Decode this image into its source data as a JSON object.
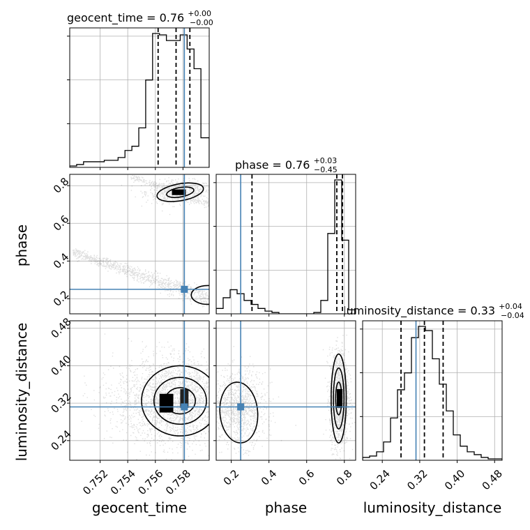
{
  "chart_data": {
    "type": "corner",
    "parameters": [
      "geocent_time",
      "phase",
      "luminosity_distance"
    ],
    "axis_labels": {
      "geocent_time": "geocent_time",
      "phase": "phase",
      "luminosity_distance": "luminosity_distance"
    },
    "titles": {
      "geocent_time": {
        "name": "geocent_time",
        "median": "0.76",
        "plus": "+0.00",
        "minus": "−0.00"
      },
      "phase": {
        "name": "phase",
        "median": "0.76",
        "plus": "+0.03",
        "minus": "−0.45"
      },
      "luminosity_distance": {
        "name": "luminosity_distance",
        "median": "0.33",
        "plus": "+0.04",
        "minus": "−0.04"
      }
    },
    "ranges": {
      "geocent_time": [
        0.7498,
        0.7599
      ],
      "phase": [
        0.12,
        0.86
      ],
      "luminosity_distance": [
        0.198,
        0.496
      ]
    },
    "ticks": {
      "geocent_time": [
        0.752,
        0.754,
        0.756,
        0.758
      ],
      "phase": [
        0.2,
        0.4,
        0.6,
        0.8
      ],
      "luminosity_distance": [
        0.24,
        0.32,
        0.4,
        0.48
      ]
    },
    "tick_labels": {
      "geocent_time": [
        "0.752",
        "0.754",
        "0.756",
        "0.758"
      ],
      "phase": [
        "0.2",
        "0.4",
        "0.6",
        "0.8"
      ],
      "luminosity_distance": [
        "0.24",
        "0.32",
        "0.40",
        "0.48"
      ]
    },
    "truths": {
      "geocent_time": 0.7581,
      "phase": 0.25,
      "luminosity_distance": 0.312
    },
    "quantiles": {
      "geocent_time": [
        0.7562,
        0.7575,
        0.7585
      ],
      "phase": [
        0.31,
        0.76,
        0.79
      ],
      "luminosity_distance": [
        0.28,
        0.33,
        0.37
      ]
    },
    "histograms": {
      "geocent_time": {
        "edges": [
          0.7498,
          0.7503,
          0.7508,
          0.7513,
          0.7518,
          0.7523,
          0.7528,
          0.7533,
          0.7538,
          0.7543,
          0.7548,
          0.7553,
          0.7558,
          0.7563,
          0.7568,
          0.7573,
          0.7578,
          0.7583,
          0.7588,
          0.7593,
          0.7599
        ],
        "counts": [
          1,
          2,
          4,
          4,
          4,
          5,
          5,
          7,
          12,
          15,
          28,
          62,
          95,
          94,
          90,
          90,
          94,
          84,
          70,
          21
        ]
      },
      "phase": {
        "edges": [
          0.12,
          0.157,
          0.194,
          0.231,
          0.268,
          0.305,
          0.342,
          0.379,
          0.416,
          0.453,
          0.49,
          0.527,
          0.564,
          0.601,
          0.638,
          0.675,
          0.712,
          0.749,
          0.786,
          0.823,
          0.86
        ],
        "counts": [
          4,
          12,
          18,
          15,
          10,
          7,
          4,
          2,
          1,
          0,
          0,
          0,
          0,
          0,
          1,
          10,
          60,
          100,
          55,
          3
        ]
      },
      "luminosity_distance": {
        "edges": [
          0.198,
          0.2129,
          0.2278,
          0.2427,
          0.2576,
          0.2725,
          0.2874,
          0.3023,
          0.3172,
          0.3321,
          0.347,
          0.3619,
          0.3768,
          0.3917,
          0.4066,
          0.4215,
          0.4364,
          0.4513,
          0.4662,
          0.4811,
          0.496
        ],
        "counts": [
          2,
          3,
          6,
          13,
          30,
          50,
          62,
          87,
          95,
          92,
          72,
          54,
          35,
          18,
          10,
          6,
          4,
          2,
          1,
          1
        ]
      }
    },
    "samples_2d": {
      "phase_vs_geocent_time": {
        "high_mode": {
          "center": [
            0.7577,
            0.77
          ],
          "spread": [
            0.0012,
            0.03
          ]
        },
        "low_arm": {
          "from": [
            0.75,
            0.45
          ],
          "to": [
            0.7599,
            0.2
          ],
          "spread": 0.02
        },
        "high_arm": {
          "from": [
            0.7542,
            0.85
          ],
          "to": [
            0.7599,
            0.7
          ],
          "spread": 0.01
        }
      },
      "luminosity_distance_vs_geocent_time": {
        "center": [
          0.7575,
          0.325
        ],
        "spread": [
          0.0022,
          0.045
        ]
      },
      "luminosity_distance_vs_phase": {
        "mode_a": {
          "center": [
            0.77,
            0.33
          ],
          "spread": [
            0.025,
            0.05
          ]
        },
        "mode_b": {
          "center": [
            0.24,
            0.31
          ],
          "spread": [
            0.07,
            0.04
          ]
        }
      }
    }
  }
}
